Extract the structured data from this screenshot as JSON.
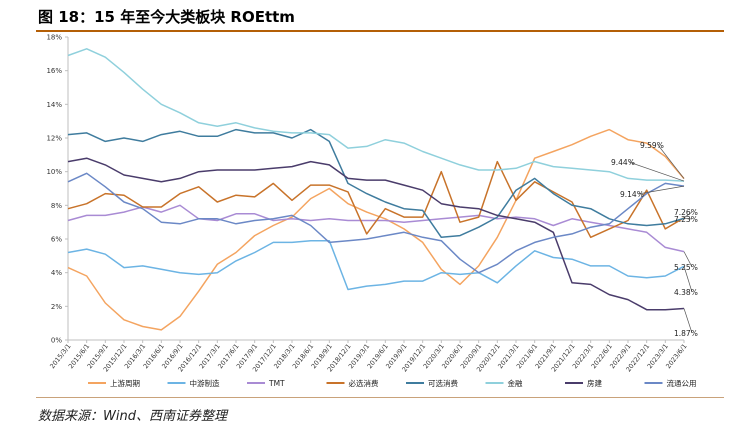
{
  "figure": {
    "title": "图 18：15 年至今大类板块 ROEttm",
    "source": "数据来源：Wind、西南证券整理"
  },
  "chart_data": {
    "type": "line",
    "title": "",
    "xlabel": "",
    "ylabel": "",
    "ylim": [
      0,
      18
    ],
    "grid": false,
    "legend_position": "bottom",
    "x": [
      "2015/3/1",
      "2015/6/1",
      "2015/9/1",
      "2015/12/1",
      "2016/3/1",
      "2016/6/1",
      "2016/9/1",
      "2016/12/1",
      "2017/3/1",
      "2017/6/1",
      "2017/9/1",
      "2017/12/1",
      "2018/3/1",
      "2018/6/1",
      "2018/9/1",
      "2018/12/1",
      "2019/3/1",
      "2019/6/1",
      "2019/9/1",
      "2019/12/1",
      "2020/3/1",
      "2020/6/1",
      "2020/9/1",
      "2020/12/1",
      "2021/3/1",
      "2021/6/1",
      "2021/9/1",
      "2021/12/1",
      "2022/3/1",
      "2022/6/1",
      "2022/9/1",
      "2022/12/1",
      "2023/3/1",
      "2023/6/1"
    ],
    "yticks": [
      "0%",
      "2%",
      "4%",
      "6%",
      "8%",
      "10%",
      "12%",
      "14%",
      "16%",
      "18%"
    ],
    "series": [
      {
        "name": "上游周期",
        "color": "#f4a460",
        "values": [
          4.3,
          3.8,
          2.2,
          1.2,
          0.8,
          0.6,
          1.4,
          2.9,
          4.5,
          5.2,
          6.2,
          6.8,
          7.3,
          8.4,
          9.0,
          8.1,
          7.6,
          7.2,
          6.6,
          5.8,
          4.2,
          3.3,
          4.4,
          6.1,
          8.3,
          10.8,
          11.2,
          11.6,
          12.1,
          12.5,
          11.9,
          11.7,
          10.9,
          9.59
        ]
      },
      {
        "name": "中游制造",
        "color": "#6cb4e4",
        "values": [
          5.2,
          5.4,
          5.1,
          4.3,
          4.4,
          4.2,
          4.0,
          3.9,
          4.0,
          4.7,
          5.2,
          5.8,
          5.8,
          5.9,
          5.9,
          3.0,
          3.2,
          3.3,
          3.5,
          3.5,
          4.0,
          3.9,
          4.0,
          3.4,
          4.4,
          5.3,
          4.9,
          4.8,
          4.4,
          4.4,
          3.8,
          3.7,
          3.8,
          4.38
        ]
      },
      {
        "name": "TMT",
        "color": "#a98bd4",
        "values": [
          7.1,
          7.4,
          7.4,
          7.6,
          7.9,
          7.6,
          8.0,
          7.2,
          7.1,
          7.5,
          7.5,
          7.1,
          7.2,
          7.1,
          7.2,
          7.1,
          7.1,
          7.1,
          7.0,
          7.1,
          7.2,
          7.3,
          7.4,
          7.2,
          7.3,
          7.2,
          6.8,
          7.2,
          7.0,
          6.8,
          6.6,
          6.4,
          5.5,
          5.25
        ]
      },
      {
        "name": "必选消费",
        "color": "#c8732a",
        "values": [
          7.8,
          8.1,
          8.7,
          8.6,
          7.9,
          7.9,
          8.7,
          9.1,
          8.2,
          8.6,
          8.5,
          9.3,
          8.3,
          9.2,
          9.2,
          8.8,
          6.3,
          7.8,
          7.3,
          7.3,
          10.0,
          7.0,
          7.3,
          10.6,
          8.3,
          9.4,
          8.8,
          8.2,
          6.1,
          6.6,
          7.1,
          8.9,
          6.6,
          7.26
        ]
      },
      {
        "name": "可选消费",
        "color": "#3f7c9e",
        "values": [
          12.2,
          12.3,
          11.8,
          12.0,
          11.8,
          12.2,
          12.4,
          12.1,
          12.1,
          12.5,
          12.3,
          12.3,
          12.0,
          12.5,
          11.8,
          9.3,
          8.7,
          8.2,
          7.8,
          7.7,
          6.1,
          6.2,
          6.7,
          7.3,
          8.9,
          9.6,
          8.7,
          8.0,
          7.8,
          7.2,
          6.9,
          6.8,
          6.9,
          7.23
        ]
      },
      {
        "name": "金融",
        "color": "#8fd0dc",
        "values": [
          16.9,
          17.3,
          16.8,
          15.9,
          14.9,
          14.0,
          13.5,
          12.9,
          12.7,
          12.9,
          12.6,
          12.4,
          12.3,
          12.3,
          12.2,
          11.4,
          11.5,
          11.9,
          11.7,
          11.2,
          10.8,
          10.4,
          10.1,
          10.1,
          10.2,
          10.6,
          10.3,
          10.2,
          10.1,
          10.0,
          9.6,
          9.5,
          9.5,
          9.44
        ]
      },
      {
        "name": "房建",
        "color": "#4a3c6b",
        "values": [
          10.6,
          10.8,
          10.4,
          9.8,
          9.6,
          9.4,
          9.6,
          10.0,
          10.1,
          10.1,
          10.1,
          10.2,
          10.3,
          10.6,
          10.4,
          9.6,
          9.5,
          9.5,
          9.2,
          8.9,
          8.1,
          7.9,
          7.8,
          7.4,
          7.2,
          7.0,
          6.4,
          3.4,
          3.3,
          2.7,
          2.4,
          1.8,
          1.8,
          1.87
        ]
      },
      {
        "name": "流通公用",
        "color": "#6b88c6",
        "values": [
          9.4,
          9.9,
          9.1,
          8.2,
          7.8,
          7.0,
          6.9,
          7.2,
          7.2,
          6.9,
          7.1,
          7.2,
          7.4,
          6.8,
          5.8,
          5.9,
          6.0,
          6.2,
          6.4,
          6.1,
          5.9,
          4.8,
          4.0,
          4.5,
          5.3,
          5.8,
          6.1,
          6.3,
          6.7,
          6.9,
          7.8,
          8.7,
          9.3,
          9.14
        ]
      }
    ],
    "annotations": [
      {
        "series": "上游周期",
        "text": "9.59%"
      },
      {
        "series": "金融",
        "text": "9.44%"
      },
      {
        "series": "流通公用",
        "text": "9.14%"
      },
      {
        "series": "必选消费",
        "text": "7.26%"
      },
      {
        "series": "可选消费",
        "text": "7.23%"
      },
      {
        "series": "TMT",
        "text": "5.25%"
      },
      {
        "series": "中游制造",
        "text": "4.38%"
      },
      {
        "series": "房建",
        "text": "1.87%"
      }
    ]
  }
}
